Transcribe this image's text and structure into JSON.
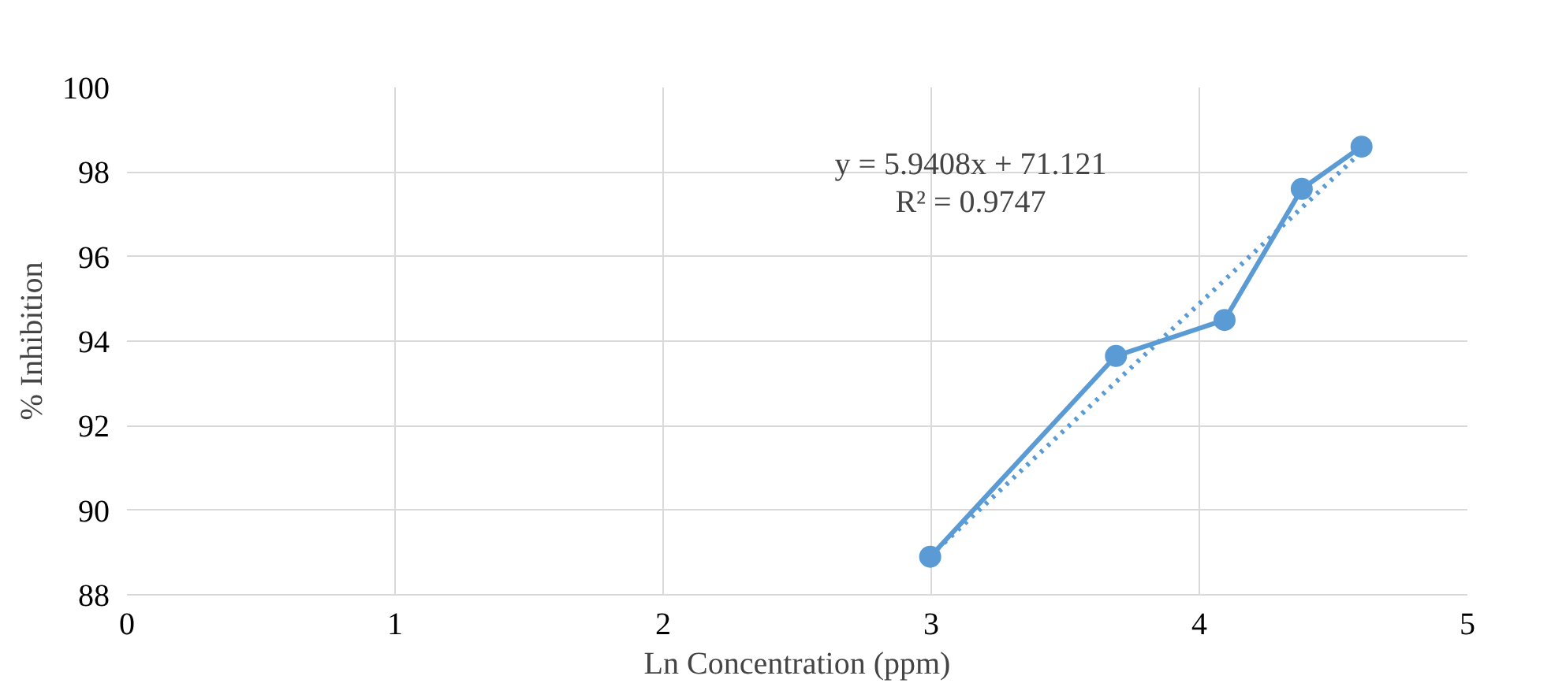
{
  "chart_data": {
    "type": "line",
    "xlabel": "Ln Concentration (ppm)",
    "ylabel": "% Inhibition",
    "xlim": [
      0,
      5
    ],
    "xticks": [
      0,
      1,
      2,
      3,
      4,
      5
    ],
    "ylim": [
      88,
      100
    ],
    "yticks": [
      88,
      90,
      92,
      94,
      96,
      98,
      100
    ],
    "grid": true,
    "marker": "circle",
    "line_style": "solid",
    "series": [
      {
        "color": "#5b9bd5",
        "x": [
          2.996,
          3.689,
          4.094,
          4.382,
          4.605
        ],
        "values": [
          88.9,
          93.65,
          94.5,
          97.6,
          98.6
        ]
      },
      {
        "type": "line",
        "color": "#5b9bd5",
        "line_style": "dotted",
        "marker": "none",
        "x": [
          2.996,
          4.605
        ],
        "values": [
          88.92,
          98.48
        ]
      }
    ],
    "annotations": [
      "y = 5.9408x + 71.121",
      "R² = 0.9747"
    ]
  }
}
